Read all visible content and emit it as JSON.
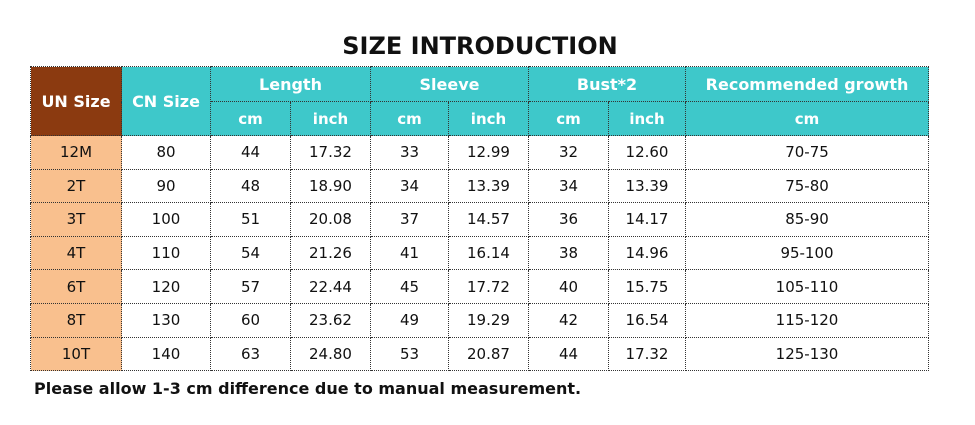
{
  "title": "SIZE INTRODUCTION",
  "header": {
    "un_size": "UN Size",
    "cn_size": "CN Size",
    "groups": [
      {
        "label": "Length",
        "subs": [
          "cm",
          "inch"
        ]
      },
      {
        "label": "Sleeve",
        "subs": [
          "cm",
          "inch"
        ]
      },
      {
        "label": "Bust*2",
        "subs": [
          "cm",
          "inch"
        ]
      },
      {
        "label": "Recommended growth",
        "subs": [
          "cm"
        ]
      }
    ]
  },
  "rows": [
    [
      "12M",
      "80",
      "44",
      "17.32",
      "33",
      "12.99",
      "32",
      "12.60",
      "70-75"
    ],
    [
      "2T",
      "90",
      "48",
      "18.90",
      "34",
      "13.39",
      "34",
      "13.39",
      "75-80"
    ],
    [
      "3T",
      "100",
      "51",
      "20.08",
      "37",
      "14.57",
      "36",
      "14.17",
      "85-90"
    ],
    [
      "4T",
      "110",
      "54",
      "21.26",
      "41",
      "16.14",
      "38",
      "14.96",
      "95-100"
    ],
    [
      "6T",
      "120",
      "57",
      "22.44",
      "45",
      "17.72",
      "40",
      "15.75",
      "105-110"
    ],
    [
      "8T",
      "130",
      "60",
      "23.62",
      "49",
      "19.29",
      "42",
      "16.54",
      "115-120"
    ],
    [
      "10T",
      "140",
      "63",
      "24.80",
      "53",
      "20.87",
      "44",
      "17.32",
      "125-130"
    ]
  ],
  "note": "Please allow 1-3 cm difference due to manual measurement."
}
